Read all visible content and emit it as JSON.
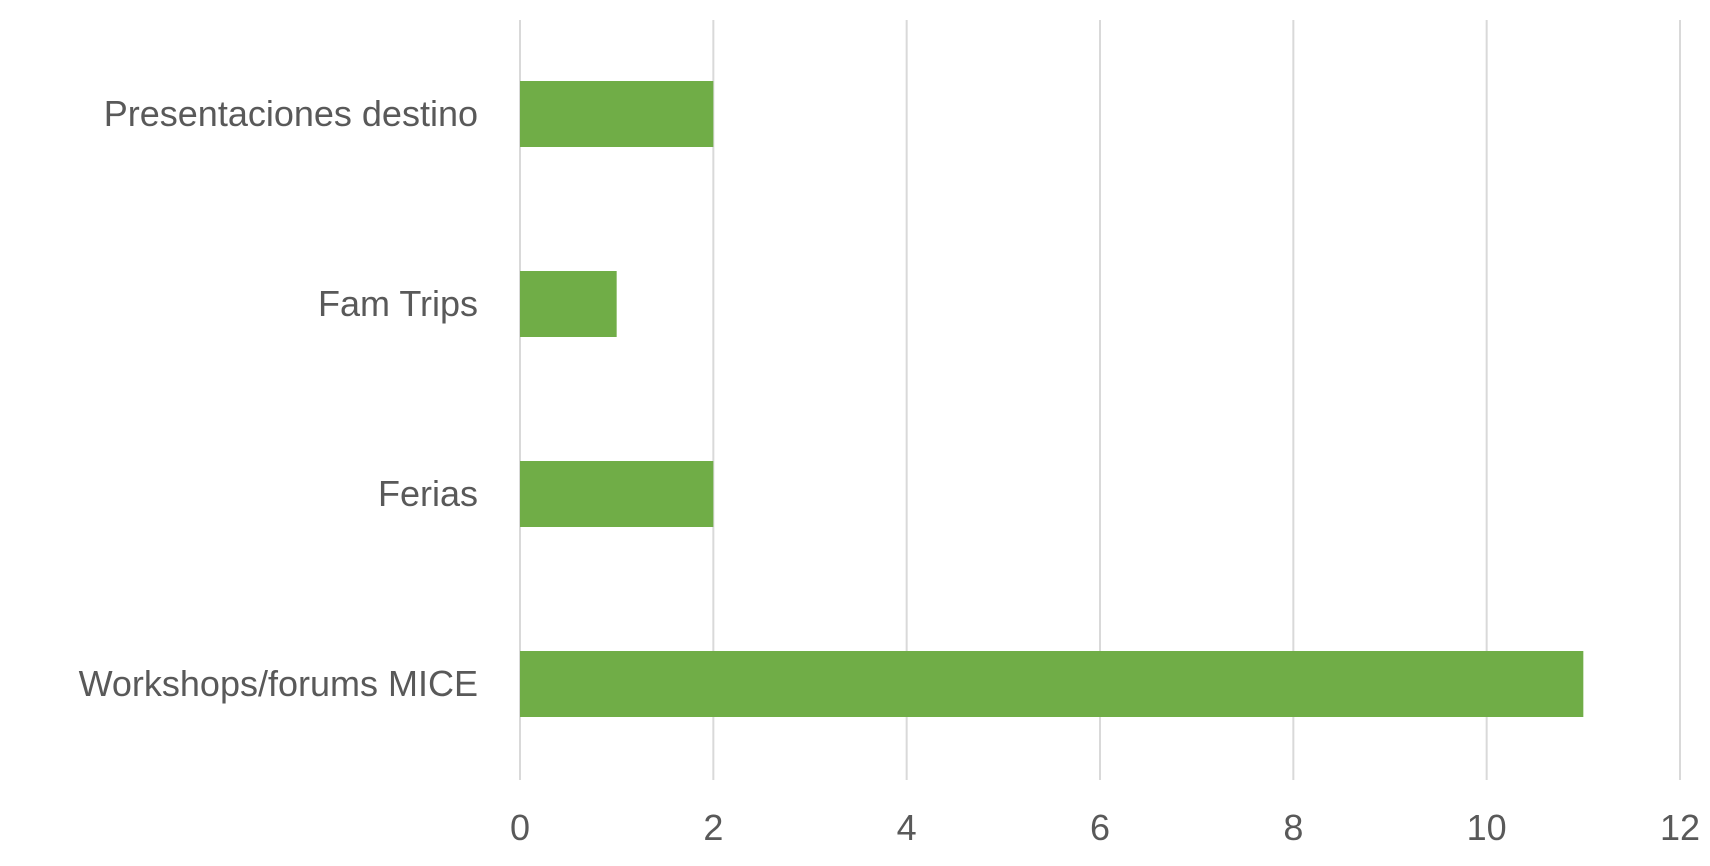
{
  "chart_data": {
    "type": "bar",
    "orientation": "horizontal",
    "categories": [
      "Presentaciones destino",
      "Fam Trips",
      "Ferias",
      "Workshops/forums MICE"
    ],
    "values": [
      2,
      1,
      2,
      11
    ],
    "xticks": [
      0,
      2,
      4,
      6,
      8,
      10,
      12
    ],
    "xlim": [
      0,
      12
    ],
    "grid": "vertical",
    "bar_color": "#70ad47",
    "grid_color": "#d9d9d9",
    "label_color": "#595959"
  }
}
